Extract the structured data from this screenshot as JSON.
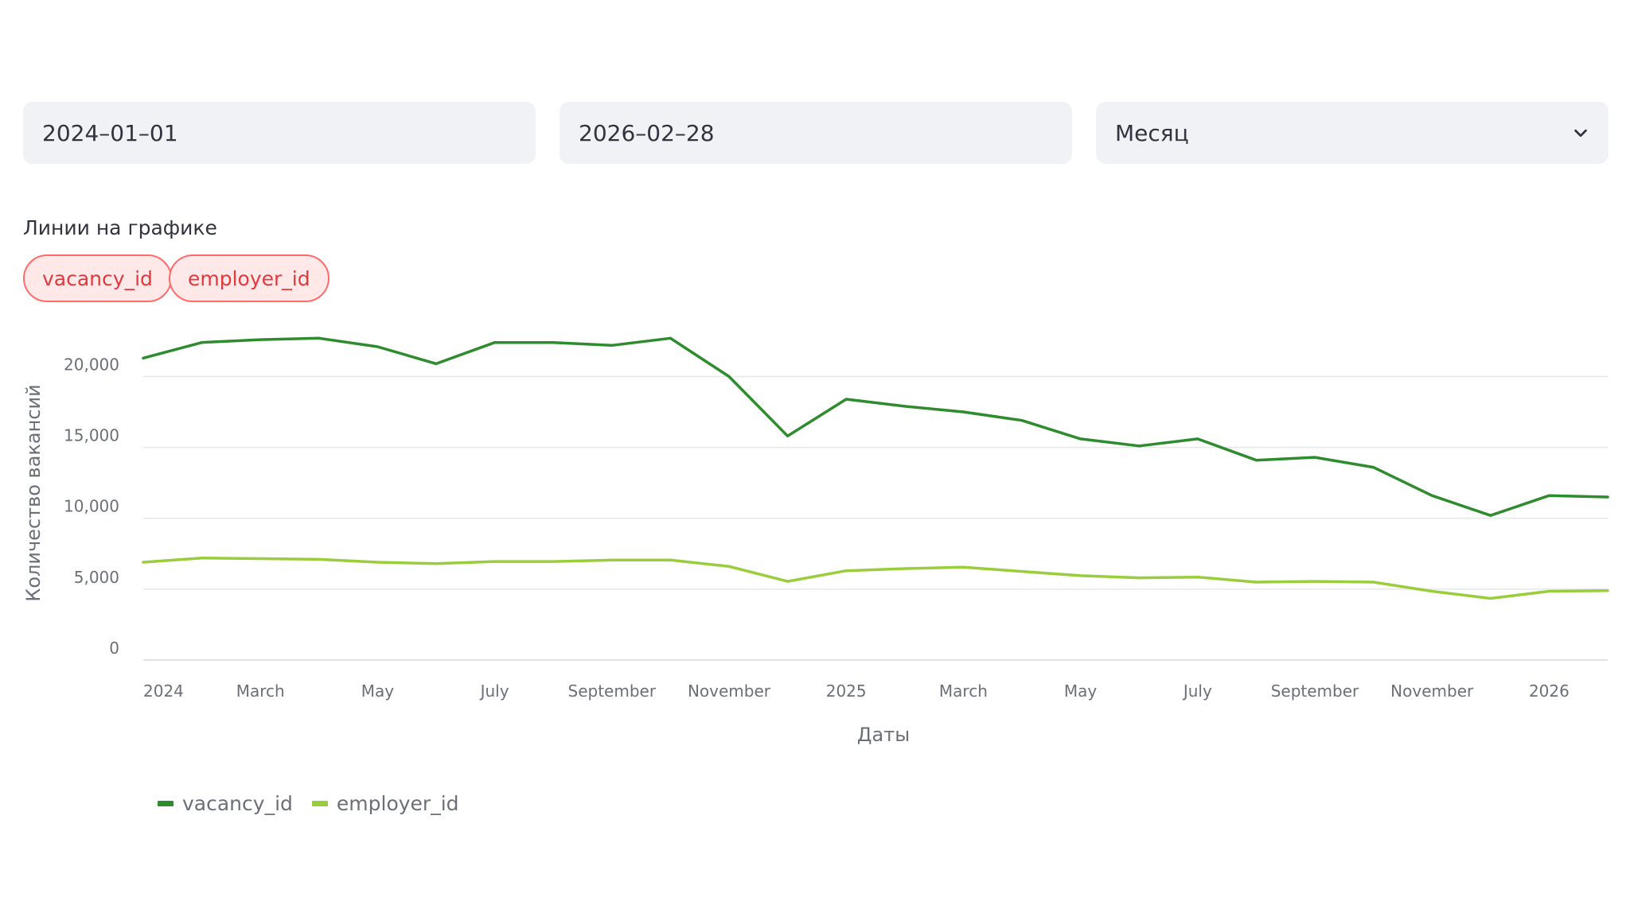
{
  "filters": {
    "start_date": "2024–01–01",
    "end_date": "2026–02–28",
    "granularity": "Месяц"
  },
  "multiselect": {
    "label": "Линии на графике",
    "selected": [
      "vacancy_id",
      "employer_id"
    ]
  },
  "colors": {
    "vacancy_id": "#2e8b2e",
    "employer_id": "#9acd3c",
    "pill_border": "#ff6b6b",
    "pill_text": "#e0393e"
  },
  "chart_data": {
    "type": "line",
    "xlabel": "Даты",
    "ylabel": "Количество вакансий",
    "ylim": [
      0,
      23000
    ],
    "y_ticks": [
      "0",
      "5,000",
      "10,000",
      "15,000",
      "20,000"
    ],
    "x": [
      "2024-01",
      "2024-02",
      "2024-03",
      "2024-04",
      "2024-05",
      "2024-06",
      "2024-07",
      "2024-08",
      "2024-09",
      "2024-10",
      "2024-11",
      "2024-12",
      "2025-01",
      "2025-02",
      "2025-03",
      "2025-04",
      "2025-05",
      "2025-06",
      "2025-07",
      "2025-08",
      "2025-09",
      "2025-10",
      "2025-11",
      "2025-12",
      "2026-01",
      "2026-02"
    ],
    "x_tick_labels": [
      {
        "x": "2024-01",
        "label": "2024"
      },
      {
        "x": "2024-03",
        "label": "March"
      },
      {
        "x": "2024-05",
        "label": "May"
      },
      {
        "x": "2024-07",
        "label": "July"
      },
      {
        "x": "2024-09",
        "label": "September"
      },
      {
        "x": "2024-11",
        "label": "November"
      },
      {
        "x": "2025-01",
        "label": "2025"
      },
      {
        "x": "2025-03",
        "label": "March"
      },
      {
        "x": "2025-05",
        "label": "May"
      },
      {
        "x": "2025-07",
        "label": "July"
      },
      {
        "x": "2025-09",
        "label": "September"
      },
      {
        "x": "2025-11",
        "label": "November"
      },
      {
        "x": "2026-01",
        "label": "2026"
      }
    ],
    "series": [
      {
        "name": "vacancy_id",
        "values": [
          21300,
          22400,
          22600,
          22700,
          22100,
          20900,
          22400,
          22400,
          22200,
          22700,
          20000,
          15800,
          18400,
          17900,
          17500,
          16900,
          15600,
          15100,
          15600,
          14100,
          14300,
          13600,
          11600,
          10200,
          11600,
          11500
        ]
      },
      {
        "name": "employer_id",
        "values": [
          6900,
          7200,
          7150,
          7100,
          6900,
          6800,
          6950,
          6950,
          7050,
          7050,
          6600,
          5550,
          6300,
          6450,
          6550,
          6250,
          5950,
          5800,
          5850,
          5500,
          5550,
          5500,
          4850,
          4350,
          4850,
          4900
        ]
      }
    ],
    "grid": true,
    "legend_position": "bottom-left"
  }
}
